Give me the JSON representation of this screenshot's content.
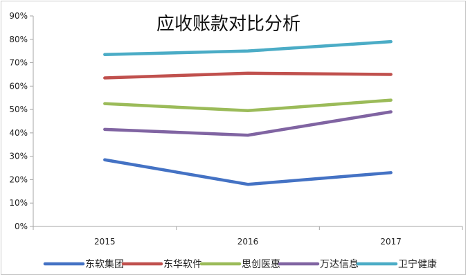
{
  "chart_data": {
    "type": "line",
    "title": "应收账款对比分析",
    "categories": [
      "2015",
      "2016",
      "2017"
    ],
    "y_ticks": [
      "0%",
      "10%",
      "20%",
      "30%",
      "40%",
      "50%",
      "60%",
      "70%",
      "80%",
      "90%"
    ],
    "ylim": [
      0,
      90
    ],
    "grid": false,
    "legend_position": "bottom",
    "series": [
      {
        "name": "东软集团",
        "color": "#4472c4",
        "values": [
          28.5,
          18,
          23
        ]
      },
      {
        "name": "东华软件",
        "color": "#c0504d",
        "values": [
          63.5,
          65.5,
          65
        ]
      },
      {
        "name": "思创医惠",
        "color": "#9bbb59",
        "values": [
          52.5,
          49.5,
          54
        ]
      },
      {
        "name": "万达信息",
        "color": "#8064a2",
        "values": [
          41.5,
          39,
          49
        ]
      },
      {
        "name": "卫宁健康",
        "color": "#4bacc6",
        "values": [
          73.5,
          75,
          79
        ]
      }
    ]
  }
}
